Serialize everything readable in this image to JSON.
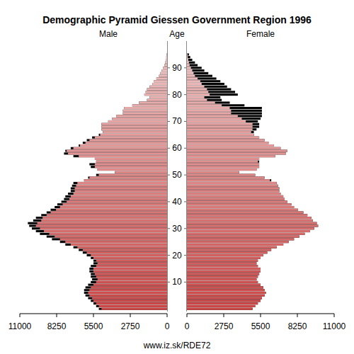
{
  "chart_data": {
    "type": "pyramid",
    "title": "Demographic Pyramid Giessen Government Region 1996",
    "y_label": "Age",
    "caption": "www.iz.sk/RDE72",
    "orientation": "horizontal",
    "categories": [
      0,
      1,
      2,
      3,
      4,
      5,
      6,
      7,
      8,
      9,
      10,
      11,
      12,
      13,
      14,
      15,
      16,
      17,
      18,
      19,
      20,
      21,
      22,
      23,
      24,
      25,
      26,
      27,
      28,
      29,
      30,
      31,
      32,
      33,
      34,
      35,
      36,
      37,
      38,
      39,
      40,
      41,
      42,
      43,
      44,
      45,
      46,
      47,
      48,
      49,
      50,
      51,
      52,
      53,
      54,
      55,
      56,
      57,
      58,
      59,
      60,
      61,
      62,
      63,
      64,
      65,
      66,
      67,
      68,
      69,
      70,
      71,
      72,
      73,
      74,
      75,
      76,
      77,
      78,
      79,
      80,
      81,
      82,
      83,
      84,
      85,
      86,
      87,
      88,
      89,
      90,
      91,
      92,
      93,
      94,
      95
    ],
    "series": [
      {
        "name": "Male",
        "color": "#cc4444",
        "values": [
          5100,
          5300,
          5500,
          5700,
          5900,
          6100,
          6200,
          6200,
          6100,
          5900,
          5700,
          5600,
          5700,
          5700,
          5800,
          5800,
          5700,
          5500,
          5500,
          5700,
          6000,
          6300,
          6600,
          7000,
          7600,
          8000,
          8600,
          9000,
          9500,
          9800,
          10100,
          10300,
          10400,
          10000,
          9800,
          9400,
          9000,
          8700,
          8400,
          8200,
          7900,
          7700,
          7600,
          7400,
          7200,
          7200,
          7100,
          7000,
          6200,
          5900,
          5300,
          3900,
          5200,
          5700,
          5800,
          5300,
          5400,
          7000,
          7700,
          7600,
          7200,
          6600,
          6300,
          6000,
          5600,
          5100,
          4800,
          4900,
          4900,
          4900,
          4400,
          4100,
          3800,
          3300,
          3300,
          3200,
          2600,
          2100,
          1500,
          1300,
          1700,
          1600,
          1500,
          1300,
          1100,
          1000,
          800,
          600,
          500,
          400,
          300,
          200,
          150,
          100,
          60,
          40
        ]
      },
      {
        "name": "Female",
        "color": "#cc4444",
        "values": [
          4900,
          5100,
          5300,
          5500,
          5600,
          5800,
          5900,
          5800,
          5700,
          5500,
          5300,
          5200,
          5300,
          5400,
          5500,
          5500,
          5300,
          5200,
          5300,
          5500,
          5700,
          6000,
          6300,
          6700,
          7200,
          7600,
          8000,
          8400,
          8800,
          9200,
          9500,
          9800,
          9700,
          9400,
          9300,
          9000,
          8700,
          8300,
          8000,
          7800,
          7500,
          7300,
          7200,
          7000,
          6900,
          6900,
          6800,
          6700,
          6300,
          5800,
          5100,
          3900,
          5200,
          5400,
          5400,
          5400,
          5400,
          6600,
          7400,
          7500,
          7000,
          6500,
          6100,
          5800,
          5400,
          5000,
          5000,
          5200,
          5400,
          5400,
          5300,
          5500,
          5600,
          5600,
          5600,
          5600,
          4300,
          3200,
          2600,
          2500,
          3800,
          3600,
          3300,
          3000,
          2800,
          2500,
          2200,
          1900,
          1600,
          1300,
          1100,
          800,
          600,
          400,
          250,
          150
        ]
      }
    ],
    "xlim": [
      0,
      11000
    ],
    "xticks": [
      0,
      2750,
      5500,
      8250,
      11000
    ],
    "ylim": [
      -1,
      100
    ],
    "yticks": [
      10,
      20,
      30,
      40,
      50,
      60,
      70,
      80,
      90
    ]
  }
}
